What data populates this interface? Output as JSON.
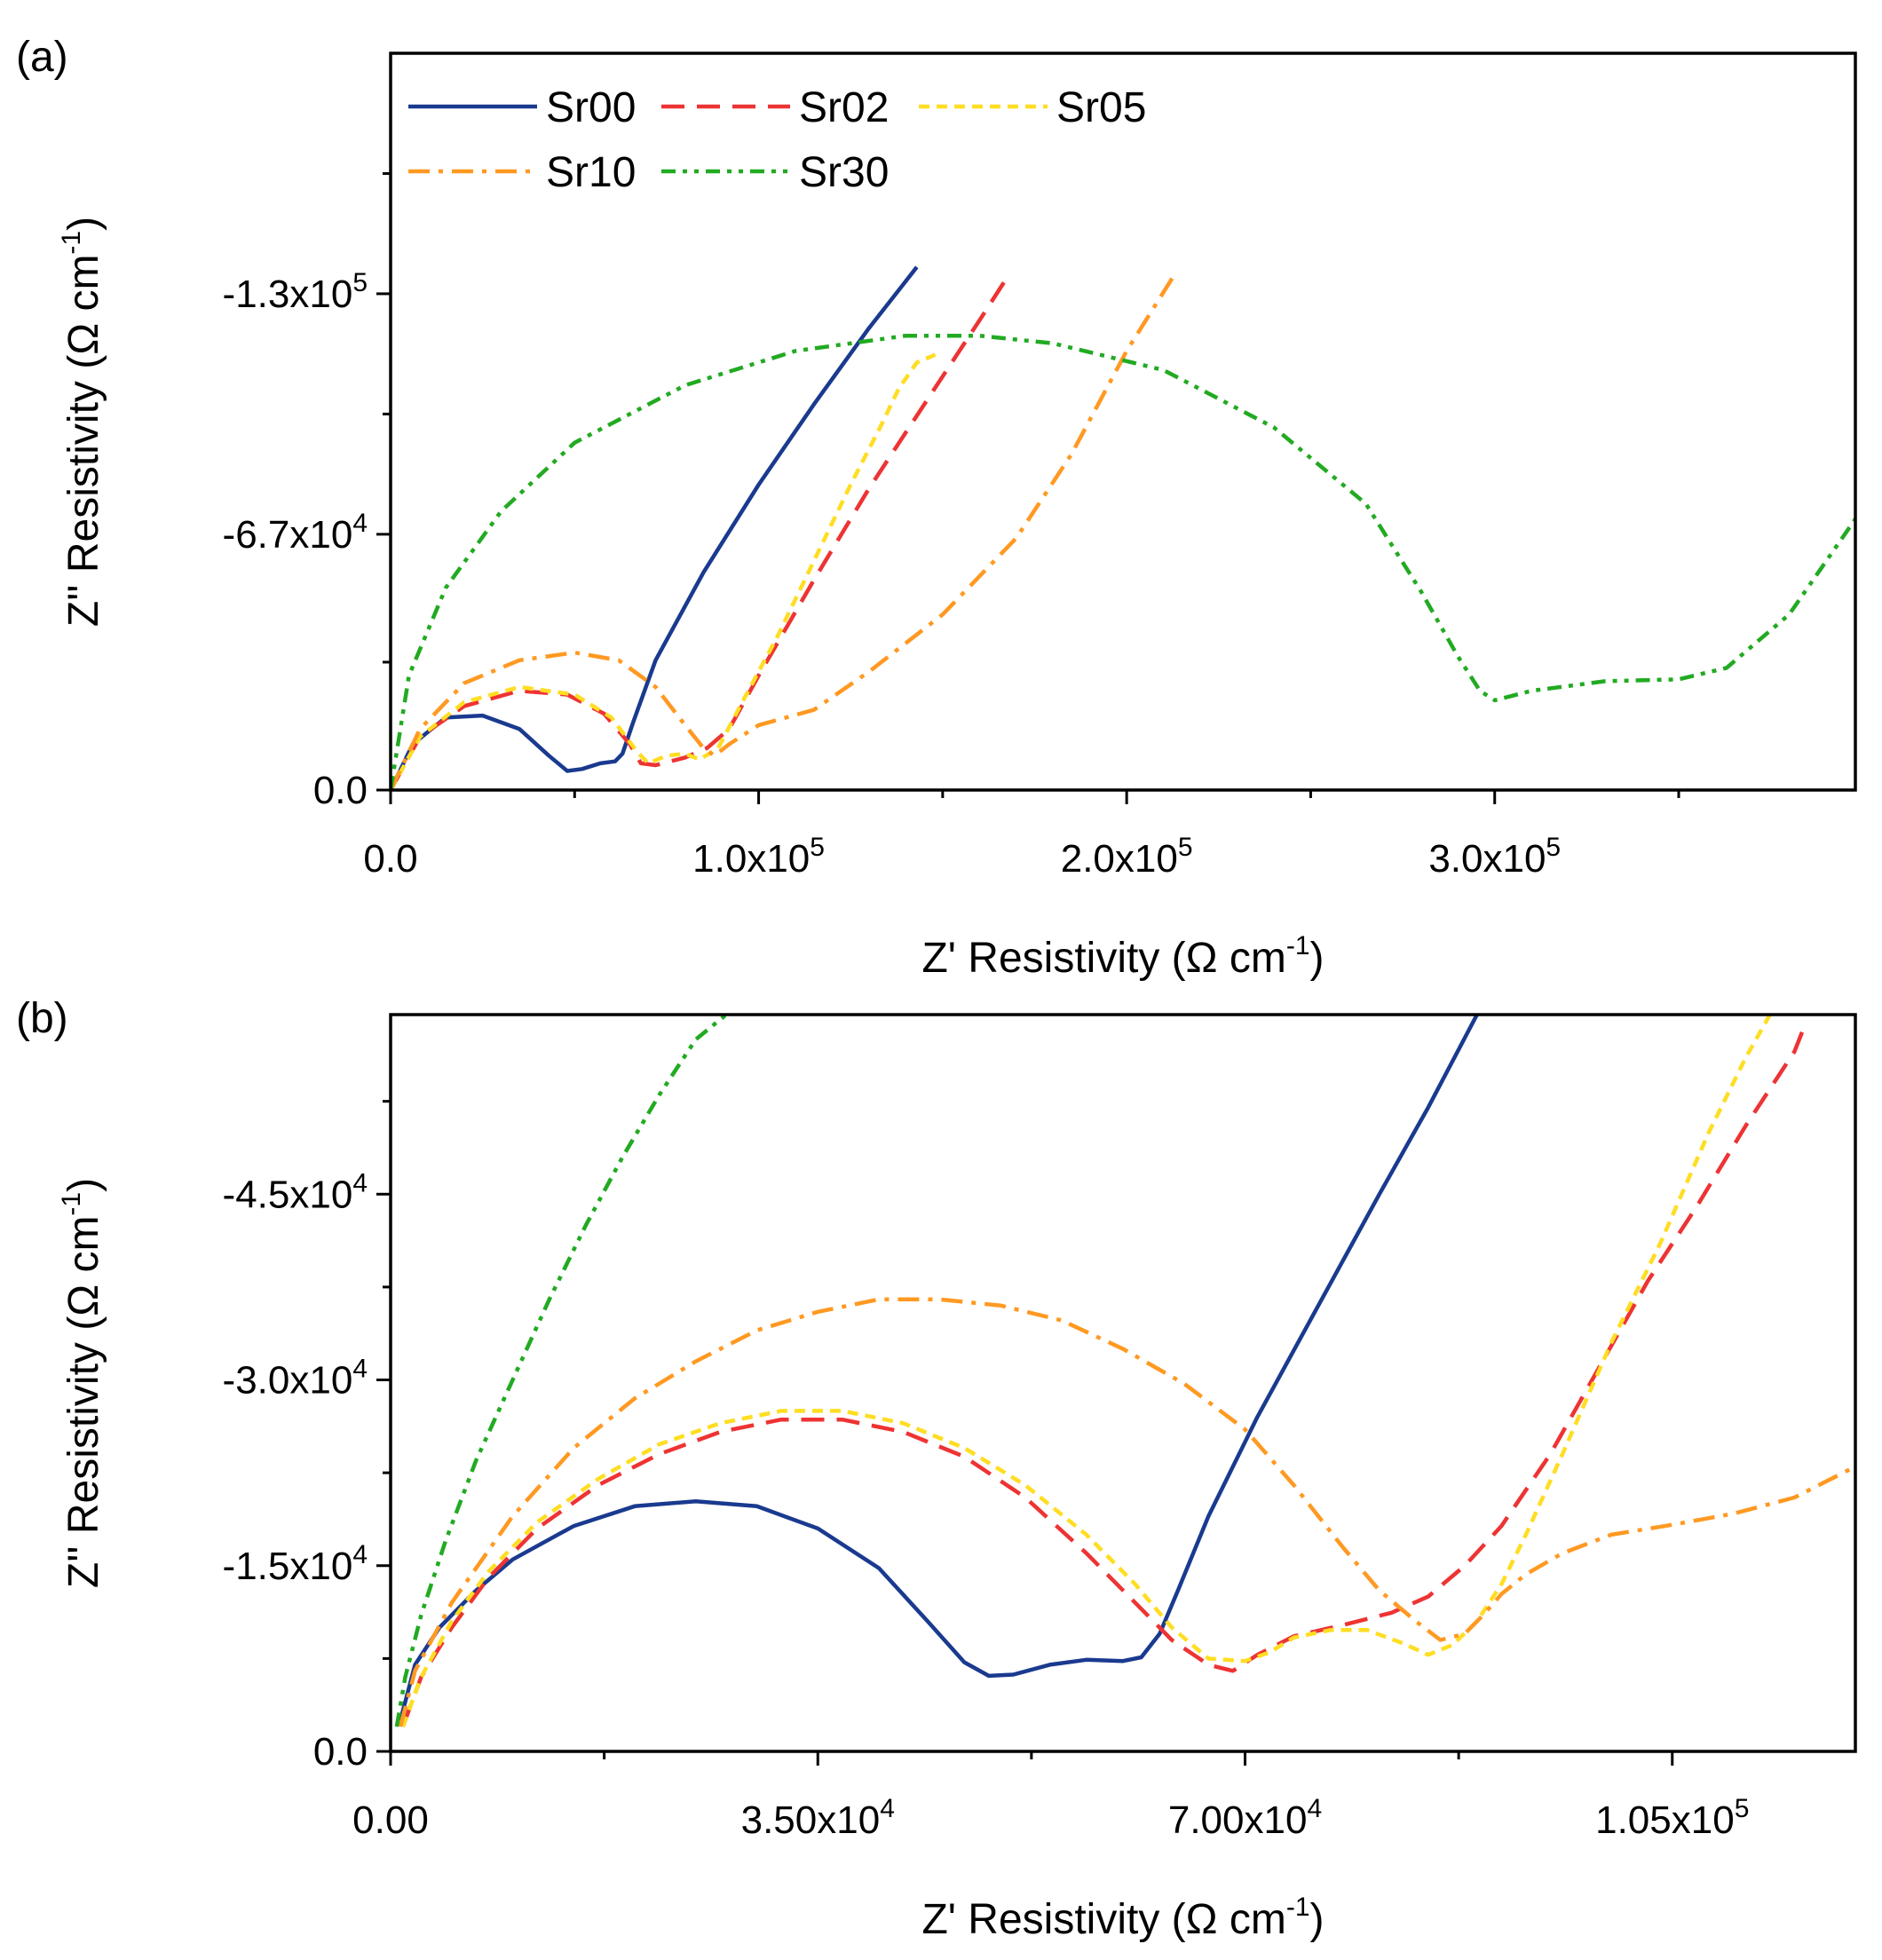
{
  "legend": {
    "entries": [
      {
        "name": "Sr00",
        "color": "#1a3a8f",
        "dash": "solid"
      },
      {
        "name": "Sr02",
        "color": "#ee3333",
        "dash": "dash"
      },
      {
        "name": "Sr05",
        "color": "#ffdd22",
        "dash": "short-dash"
      },
      {
        "name": "Sr10",
        "color": "#ff9922",
        "dash": "dash-dot"
      },
      {
        "name": "Sr30",
        "color": "#22aa22",
        "dash": "dash-dot-dot"
      }
    ]
  },
  "chart_data": [
    {
      "type": "line",
      "panel_label": "(a)",
      "xlabel": "Z' Resistivity (Ω cm",
      "xlabel_sup": "-1",
      "xlabel_end": ")",
      "ylabel": "Z'' Resistivity (Ω cm",
      "ylabel_sup": "-1",
      "ylabel_end": ")",
      "xlim": [
        0,
        398000
      ],
      "ylim": [
        0,
        -193000
      ],
      "xticks": [
        {
          "value": 0,
          "mant": "0.0",
          "exp": ""
        },
        {
          "value": 100000,
          "mant": "1.0x10",
          "exp": "5"
        },
        {
          "value": 200000,
          "mant": "2.0x10",
          "exp": "5"
        },
        {
          "value": 300000,
          "mant": "3.0x10",
          "exp": "5"
        }
      ],
      "xminor": [
        50000,
        150000,
        250000,
        350000
      ],
      "yticks": [
        {
          "value": 0,
          "mant": "0.0",
          "exp": ""
        },
        {
          "value": -67000,
          "mant": "-6.7x10",
          "exp": "4"
        },
        {
          "value": -130000,
          "mant": "-1.3x10",
          "exp": "5"
        }
      ],
      "yminor": [
        -33500,
        -98500,
        -161500
      ],
      "series": [
        {
          "name": "Sr00",
          "x": [
            0,
            6000,
            15000,
            25000,
            35000,
            43000,
            48000,
            52000,
            57000,
            61000,
            63000,
            66000,
            72000,
            85000,
            100000,
            115000,
            130000,
            143000
          ],
          "y": [
            0,
            -12000,
            -19000,
            -19500,
            -16000,
            -9000,
            -5000,
            -5500,
            -7000,
            -7500,
            -9500,
            -18000,
            -34000,
            -57000,
            -80000,
            -101000,
            -121000,
            -137000
          ]
        },
        {
          "name": "Sr02",
          "x": [
            0,
            8000,
            20000,
            35000,
            48000,
            58000,
            65000,
            68000,
            72000,
            80000,
            86000,
            92000,
            100000,
            115000,
            130000,
            145000,
            160000,
            168000
          ],
          "y": [
            0,
            -14000,
            -22000,
            -26000,
            -25000,
            -20000,
            -12000,
            -7000,
            -6500,
            -8500,
            -11000,
            -16000,
            -30000,
            -55000,
            -79000,
            -101000,
            -123000,
            -135000
          ]
        },
        {
          "name": "Sr05",
          "x": [
            0,
            8000,
            20000,
            35000,
            50000,
            60000,
            67000,
            70000,
            75000,
            80000,
            84000,
            89000,
            95000,
            105000,
            115000,
            125000,
            133000,
            138000,
            143000,
            148000
          ],
          "y": [
            0,
            -14000,
            -23000,
            -27000,
            -25000,
            -19000,
            -10000,
            -7000,
            -9000,
            -9500,
            -8000,
            -11000,
            -22000,
            -40000,
            -60000,
            -80000,
            -95000,
            -105000,
            -112000,
            -114000
          ]
        },
        {
          "name": "Sr10",
          "x": [
            0,
            8000,
            20000,
            35000,
            50000,
            62000,
            72000,
            80000,
            85000,
            88000,
            92000,
            100000,
            115000,
            130000,
            150000,
            170000,
            185000,
            200000,
            213000
          ],
          "y": [
            0,
            -16000,
            -28000,
            -34000,
            -36000,
            -34000,
            -27000,
            -17000,
            -11000,
            -9000,
            -12000,
            -17000,
            -21000,
            -31000,
            -46000,
            -66000,
            -88000,
            -115000,
            -135000
          ]
        },
        {
          "name": "Sr30",
          "x": [
            0,
            5000,
            15000,
            30000,
            50000,
            80000,
            110000,
            140000,
            160000,
            180000,
            210000,
            240000,
            265000,
            280000,
            290000,
            296000,
            300000,
            310000,
            330000,
            350000,
            363000,
            380000,
            398000
          ],
          "y": [
            0,
            -30000,
            -53000,
            -73000,
            -91000,
            -106000,
            -115000,
            -119000,
            -119000,
            -117000,
            -110000,
            -95000,
            -75000,
            -52000,
            -35000,
            -26000,
            -23500,
            -26000,
            -28500,
            -29000,
            -32000,
            -46000,
            -71000
          ]
        }
      ]
    },
    {
      "type": "line",
      "panel_label": "(b)",
      "xlabel": "Z' Resistivity (Ω cm",
      "xlabel_sup": "-1",
      "xlabel_end": ")",
      "ylabel": "Z'' Resistivity (Ω cm",
      "ylabel_sup": "-1",
      "ylabel_end": ")",
      "xlim": [
        0,
        120000
      ],
      "ylim": [
        0,
        -59500
      ],
      "xticks": [
        {
          "value": 0,
          "mant": "0.00",
          "exp": ""
        },
        {
          "value": 35000,
          "mant": "3.50x10",
          "exp": "4"
        },
        {
          "value": 70000,
          "mant": "7.00x10",
          "exp": "4"
        },
        {
          "value": 105000,
          "mant": "1.05x10",
          "exp": "5"
        }
      ],
      "xminor": [
        17500,
        52500,
        87500
      ],
      "yticks": [
        {
          "value": 0,
          "mant": "0.0",
          "exp": ""
        },
        {
          "value": -15000,
          "mant": "-1.5x10",
          "exp": "4"
        },
        {
          "value": -30000,
          "mant": "-3.0x10",
          "exp": "4"
        },
        {
          "value": -45000,
          "mant": "-4.5x10",
          "exp": "4"
        }
      ],
      "yminor": [
        -7500,
        -22500,
        -37500,
        -52500
      ],
      "series": [
        {
          "name": "Sr00",
          "x": [
            800,
            2000,
            4000,
            7000,
            10000,
            15000,
            20000,
            25000,
            30000,
            35000,
            40000,
            44000,
            47000,
            49000,
            51000,
            54000,
            57000,
            60000,
            61500,
            63000,
            64500,
            67000,
            71000,
            76000,
            81000,
            85000,
            89000
          ],
          "y": [
            -2500,
            -7000,
            -10000,
            -13000,
            -15500,
            -18200,
            -19800,
            -20200,
            -19800,
            -18000,
            -14800,
            -10500,
            -7200,
            -6100,
            -6200,
            -7000,
            -7400,
            -7300,
            -7600,
            -9500,
            -13000,
            -19000,
            -27000,
            -36000,
            -45000,
            -52000,
            -59500
          ]
        },
        {
          "name": "Sr02",
          "x": [
            1000,
            2500,
            5000,
            8000,
            12000,
            17000,
            22000,
            27000,
            32000,
            37000,
            42000,
            47000,
            52000,
            57000,
            61000,
            64000,
            67000,
            69000,
            71000,
            74000,
            78000,
            82000,
            85000,
            88000,
            91000,
            95000,
            99000,
            103000,
            107000,
            111000,
            115000,
            116000
          ],
          "y": [
            -2000,
            -6000,
            -10000,
            -14000,
            -18000,
            -21500,
            -24000,
            -25800,
            -26800,
            -26800,
            -25800,
            -23800,
            -20500,
            -16000,
            -12000,
            -9000,
            -7000,
            -6500,
            -7800,
            -9300,
            -10200,
            -11200,
            -12500,
            -15000,
            -18200,
            -24000,
            -31000,
            -38000,
            -44000,
            -50500,
            -56500,
            -59000
          ]
        },
        {
          "name": "Sr05",
          "x": [
            1000,
            2500,
            5000,
            8000,
            12000,
            17000,
            22000,
            27000,
            32000,
            37000,
            42000,
            47000,
            52000,
            57000,
            61000,
            64000,
            67000,
            70000,
            72000,
            74000,
            77000,
            80000,
            83000,
            85000,
            87000,
            89000,
            91000,
            93000,
            96000,
            100000,
            104000,
            108000,
            111000,
            113000
          ],
          "y": [
            -2000,
            -6000,
            -10500,
            -14500,
            -18500,
            -22000,
            -24800,
            -26500,
            -27500,
            -27500,
            -26500,
            -24500,
            -21500,
            -17500,
            -13500,
            -10000,
            -7500,
            -7300,
            -8000,
            -9200,
            -9800,
            -9800,
            -8700,
            -7800,
            -8600,
            -10500,
            -13500,
            -17500,
            -24000,
            -33000,
            -41000,
            -50000,
            -56000,
            -59500
          ]
        },
        {
          "name": "Sr10",
          "x": [
            800,
            2000,
            5000,
            10000,
            15000,
            20000,
            25000,
            30000,
            35000,
            40000,
            45000,
            50000,
            55000,
            60000,
            65000,
            70000,
            74000,
            78000,
            81000,
            84000,
            86000,
            88000,
            89500,
            91000,
            93000,
            96000,
            100000,
            105000,
            110000,
            115000,
            120000
          ],
          "y": [
            -2000,
            -6500,
            -12000,
            -19000,
            -24500,
            -28500,
            -31500,
            -34000,
            -35500,
            -36500,
            -36500,
            -36000,
            -34800,
            -32500,
            -29700,
            -26000,
            -21500,
            -16500,
            -13000,
            -10500,
            -9000,
            -9500,
            -11000,
            -12700,
            -14300,
            -16000,
            -17500,
            -18300,
            -19200,
            -20500,
            -23000
          ]
        },
        {
          "name": "Sr30",
          "x": [
            500,
            1200,
            2500,
            4500,
            7000,
            10000,
            13000,
            16000,
            19000,
            22000,
            25000,
            27500
          ],
          "y": [
            -2000,
            -6000,
            -11000,
            -17000,
            -23500,
            -30000,
            -36500,
            -42500,
            -48000,
            -53000,
            -57500,
            -59500
          ]
        }
      ]
    }
  ]
}
